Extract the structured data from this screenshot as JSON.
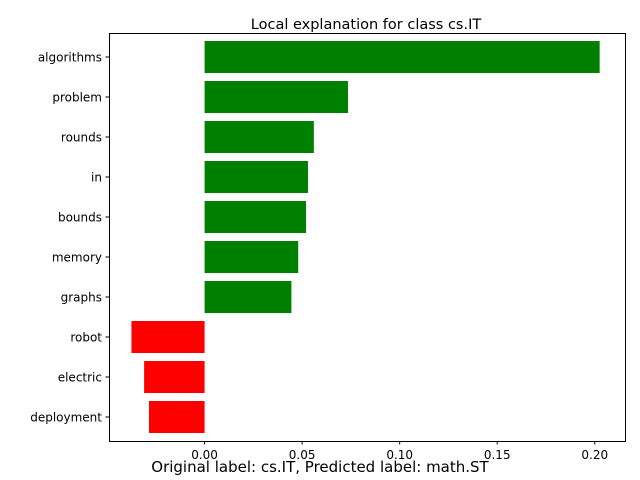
{
  "chart_data": {
    "type": "bar",
    "orientation": "horizontal",
    "title": "Local explanation for class cs.IT",
    "xlabel": "",
    "ylabel": "",
    "categories": [
      "algorithms",
      "problem",
      "rounds",
      "in",
      "bounds",
      "memory",
      "graphs",
      "robot",
      "electric",
      "deployment"
    ],
    "values": [
      0.2025,
      0.0735,
      0.056,
      0.053,
      0.052,
      0.048,
      0.0445,
      -0.0375,
      -0.031,
      -0.0285
    ],
    "xlim": [
      -0.049,
      0.2155
    ],
    "xticks": [
      0.0,
      0.05,
      0.1,
      0.15,
      0.2
    ],
    "xtick_labels": [
      "0.00",
      "0.05",
      "0.10",
      "0.15",
      "0.20"
    ],
    "positive_color": "#008000",
    "negative_color": "#ff0000",
    "grid": false,
    "legend": "none"
  },
  "caption": "Original label: cs.IT, Predicted label: math.ST"
}
